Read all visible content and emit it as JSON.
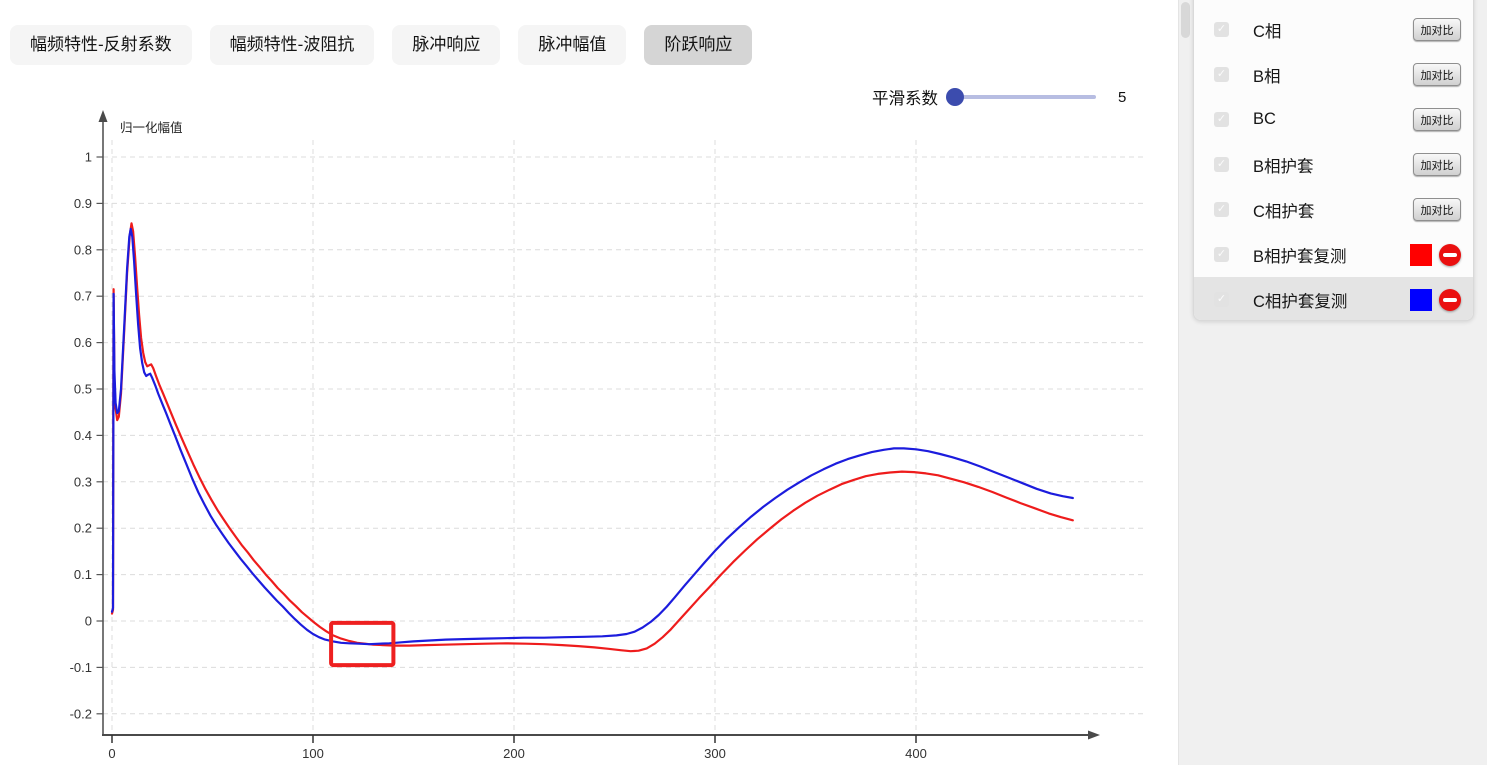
{
  "tabs": {
    "items": [
      {
        "label": "幅频特性-反射系数",
        "selected": false
      },
      {
        "label": "幅频特性-波阻抗",
        "selected": false
      },
      {
        "label": "脉冲响应",
        "selected": false
      },
      {
        "label": "脉冲幅值",
        "selected": false
      },
      {
        "label": "阶跃响应",
        "selected": true
      }
    ]
  },
  "smoothing": {
    "label": "平滑系数",
    "value": "5"
  },
  "sidebar": {
    "compare_button_label": "加对比",
    "items": [
      {
        "label": "C相",
        "checked": true,
        "control": "compare",
        "highlighted": false
      },
      {
        "label": "B相",
        "checked": true,
        "control": "compare",
        "highlighted": false
      },
      {
        "label": "BC",
        "checked": true,
        "control": "compare",
        "highlighted": false
      },
      {
        "label": "B相护套",
        "checked": true,
        "control": "compare",
        "highlighted": false
      },
      {
        "label": "C相护套",
        "checked": true,
        "control": "compare",
        "highlighted": false
      },
      {
        "label": "B相护套复测",
        "checked": true,
        "control": "series",
        "swatch_color": "#ff0000",
        "highlighted": false
      },
      {
        "label": "C相护套复测",
        "checked": true,
        "control": "series",
        "swatch_color": "#0000ff",
        "highlighted": true
      }
    ]
  },
  "chart_data": {
    "type": "line",
    "title": "",
    "xlabel": "",
    "ylabel": "归一化幅值",
    "xlim": [
      0,
      489
    ],
    "ylim": [
      -0.25,
      1.08
    ],
    "x_ticks": [
      0,
      100,
      200,
      300,
      400
    ],
    "y_ticks": [
      1,
      0.9,
      0.8,
      0.7,
      0.6,
      0.5,
      0.4,
      0.3,
      0.2,
      0.1,
      0,
      -0.1,
      -0.2
    ],
    "grid": "dashed",
    "legend_position": "none",
    "annotation_box": {
      "x": [
        109,
        140
      ],
      "y": [
        -0.095,
        -0.004
      ],
      "color": "#ee2020"
    },
    "series": [
      {
        "name": "B相护套复测",
        "color": "#ee1c1c",
        "points": [
          [
            0,
            0.016
          ],
          [
            0.5,
            0.024
          ],
          [
            0.8,
            0.715
          ],
          [
            1.2,
            0.52
          ],
          [
            1.8,
            0.458
          ],
          [
            2.6,
            0.433
          ],
          [
            3.4,
            0.44
          ],
          [
            4.5,
            0.49
          ],
          [
            6,
            0.62
          ],
          [
            7.5,
            0.75
          ],
          [
            8.8,
            0.83
          ],
          [
            9.7,
            0.857
          ],
          [
            10.5,
            0.84
          ],
          [
            11.5,
            0.785
          ],
          [
            12.5,
            0.72
          ],
          [
            13.5,
            0.66
          ],
          [
            14.5,
            0.61
          ],
          [
            15.5,
            0.578
          ],
          [
            16.5,
            0.558
          ],
          [
            17.5,
            0.549
          ],
          [
            18.5,
            0.551
          ],
          [
            19.5,
            0.553
          ],
          [
            20.5,
            0.545
          ],
          [
            22,
            0.527
          ],
          [
            23.5,
            0.51
          ],
          [
            25.5,
            0.489
          ],
          [
            27.5,
            0.468
          ],
          [
            29.5,
            0.447
          ],
          [
            32,
            0.421
          ],
          [
            34.5,
            0.396
          ],
          [
            37.5,
            0.366
          ],
          [
            40.5,
            0.337
          ],
          [
            43.5,
            0.31
          ],
          [
            46.5,
            0.284
          ],
          [
            49.5,
            0.261
          ],
          [
            52.5,
            0.239
          ],
          [
            55.5,
            0.219
          ],
          [
            58.5,
            0.2
          ],
          [
            61.5,
            0.182
          ],
          [
            64.5,
            0.164
          ],
          [
            67.5,
            0.148
          ],
          [
            70.5,
            0.131
          ],
          [
            73.5,
            0.116
          ],
          [
            76.5,
            0.1
          ],
          [
            79.5,
            0.086
          ],
          [
            82.5,
            0.071
          ],
          [
            85.5,
            0.058
          ],
          [
            88.5,
            0.044
          ],
          [
            91.5,
            0.032
          ],
          [
            94.5,
            0.019
          ],
          [
            97.5,
            0.008
          ],
          [
            100.5,
            -0.003
          ],
          [
            103.5,
            -0.013
          ],
          [
            106.5,
            -0.022
          ],
          [
            110,
            -0.031
          ],
          [
            114,
            -0.038
          ],
          [
            118,
            -0.043
          ],
          [
            122,
            -0.047
          ],
          [
            126,
            -0.049
          ],
          [
            130,
            -0.051
          ],
          [
            135,
            -0.052
          ],
          [
            141,
            -0.053
          ],
          [
            148,
            -0.053
          ],
          [
            156,
            -0.052
          ],
          [
            165,
            -0.051
          ],
          [
            175,
            -0.05
          ],
          [
            186,
            -0.049
          ],
          [
            196,
            -0.048
          ],
          [
            206,
            -0.049
          ],
          [
            215,
            -0.05
          ],
          [
            224,
            -0.052
          ],
          [
            232,
            -0.054
          ],
          [
            240,
            -0.057
          ],
          [
            247,
            -0.06
          ],
          [
            253,
            -0.063
          ],
          [
            258,
            -0.065
          ],
          [
            262,
            -0.064
          ],
          [
            266,
            -0.059
          ],
          [
            270,
            -0.049
          ],
          [
            274,
            -0.035
          ],
          [
            278,
            -0.018
          ],
          [
            282,
            0.001
          ],
          [
            287,
            0.025
          ],
          [
            292,
            0.049
          ],
          [
            297,
            0.072
          ],
          [
            303,
            0.1
          ],
          [
            309,
            0.127
          ],
          [
            315,
            0.152
          ],
          [
            321,
            0.176
          ],
          [
            327,
            0.198
          ],
          [
            333,
            0.219
          ],
          [
            339,
            0.238
          ],
          [
            345,
            0.255
          ],
          [
            351,
            0.27
          ],
          [
            357,
            0.283
          ],
          [
            363,
            0.295
          ],
          [
            369,
            0.304
          ],
          [
            375,
            0.312
          ],
          [
            381,
            0.317
          ],
          [
            387,
            0.32
          ],
          [
            393,
            0.322
          ],
          [
            399,
            0.321
          ],
          [
            405,
            0.318
          ],
          [
            411,
            0.314
          ],
          [
            417,
            0.307
          ],
          [
            424,
            0.299
          ],
          [
            431,
            0.289
          ],
          [
            438,
            0.278
          ],
          [
            445,
            0.266
          ],
          [
            452,
            0.254
          ],
          [
            459,
            0.243
          ],
          [
            466,
            0.232
          ],
          [
            472,
            0.224
          ],
          [
            478,
            0.217
          ]
        ]
      },
      {
        "name": "C相护套复测",
        "color": "#1c1cdd",
        "points": [
          [
            0,
            0.02
          ],
          [
            0.5,
            0.028
          ],
          [
            0.8,
            0.705
          ],
          [
            1.2,
            0.54
          ],
          [
            1.8,
            0.47
          ],
          [
            2.6,
            0.448
          ],
          [
            3.4,
            0.452
          ],
          [
            4.5,
            0.5
          ],
          [
            6,
            0.63
          ],
          [
            7.5,
            0.76
          ],
          [
            8.6,
            0.828
          ],
          [
            9.3,
            0.845
          ],
          [
            10.1,
            0.828
          ],
          [
            11,
            0.775
          ],
          [
            12,
            0.705
          ],
          [
            13,
            0.64
          ],
          [
            14,
            0.588
          ],
          [
            15,
            0.556
          ],
          [
            16,
            0.536
          ],
          [
            17,
            0.528
          ],
          [
            18,
            0.531
          ],
          [
            19,
            0.533
          ],
          [
            20,
            0.524
          ],
          [
            21.5,
            0.508
          ],
          [
            23,
            0.49
          ],
          [
            25,
            0.468
          ],
          [
            27,
            0.447
          ],
          [
            29,
            0.425
          ],
          [
            31.5,
            0.398
          ],
          [
            34,
            0.37
          ],
          [
            37,
            0.338
          ],
          [
            40,
            0.306
          ],
          [
            43,
            0.277
          ],
          [
            46,
            0.251
          ],
          [
            49,
            0.227
          ],
          [
            52,
            0.206
          ],
          [
            55,
            0.187
          ],
          [
            58,
            0.168
          ],
          [
            61,
            0.151
          ],
          [
            64,
            0.134
          ],
          [
            67,
            0.118
          ],
          [
            70,
            0.102
          ],
          [
            73,
            0.087
          ],
          [
            76,
            0.072
          ],
          [
            79,
            0.058
          ],
          [
            82,
            0.044
          ],
          [
            85,
            0.031
          ],
          [
            88,
            0.017
          ],
          [
            91,
            0.004
          ],
          [
            94,
            -0.008
          ],
          [
            97,
            -0.019
          ],
          [
            100,
            -0.028
          ],
          [
            103,
            -0.035
          ],
          [
            106,
            -0.04
          ],
          [
            110,
            -0.044
          ],
          [
            114,
            -0.047
          ],
          [
            118,
            -0.048
          ],
          [
            123,
            -0.049
          ],
          [
            128,
            -0.05
          ],
          [
            133,
            -0.049
          ],
          [
            138,
            -0.048
          ],
          [
            144,
            -0.046
          ],
          [
            150,
            -0.044
          ],
          [
            158,
            -0.042
          ],
          [
            166,
            -0.04
          ],
          [
            175,
            -0.039
          ],
          [
            185,
            -0.038
          ],
          [
            195,
            -0.037
          ],
          [
            205,
            -0.036
          ],
          [
            215,
            -0.036
          ],
          [
            225,
            -0.035
          ],
          [
            235,
            -0.034
          ],
          [
            244,
            -0.033
          ],
          [
            251,
            -0.031
          ],
          [
            256,
            -0.028
          ],
          [
            260,
            -0.023
          ],
          [
            264,
            -0.014
          ],
          [
            268,
            -0.002
          ],
          [
            272,
            0.013
          ],
          [
            276,
            0.031
          ],
          [
            280,
            0.051
          ],
          [
            285,
            0.077
          ],
          [
            290,
            0.102
          ],
          [
            295,
            0.127
          ],
          [
            300,
            0.151
          ],
          [
            306,
            0.178
          ],
          [
            312,
            0.202
          ],
          [
            318,
            0.225
          ],
          [
            324,
            0.246
          ],
          [
            330,
            0.265
          ],
          [
            336,
            0.283
          ],
          [
            342,
            0.299
          ],
          [
            348,
            0.314
          ],
          [
            354,
            0.327
          ],
          [
            360,
            0.339
          ],
          [
            366,
            0.349
          ],
          [
            372,
            0.357
          ],
          [
            378,
            0.364
          ],
          [
            384,
            0.369
          ],
          [
            389,
            0.372
          ],
          [
            394,
            0.372
          ],
          [
            400,
            0.37
          ],
          [
            406,
            0.366
          ],
          [
            412,
            0.36
          ],
          [
            418,
            0.353
          ],
          [
            425,
            0.344
          ],
          [
            432,
            0.333
          ],
          [
            439,
            0.321
          ],
          [
            446,
            0.309
          ],
          [
            453,
            0.297
          ],
          [
            460,
            0.285
          ],
          [
            467,
            0.275
          ],
          [
            473,
            0.269
          ],
          [
            478,
            0.265
          ]
        ]
      }
    ]
  }
}
